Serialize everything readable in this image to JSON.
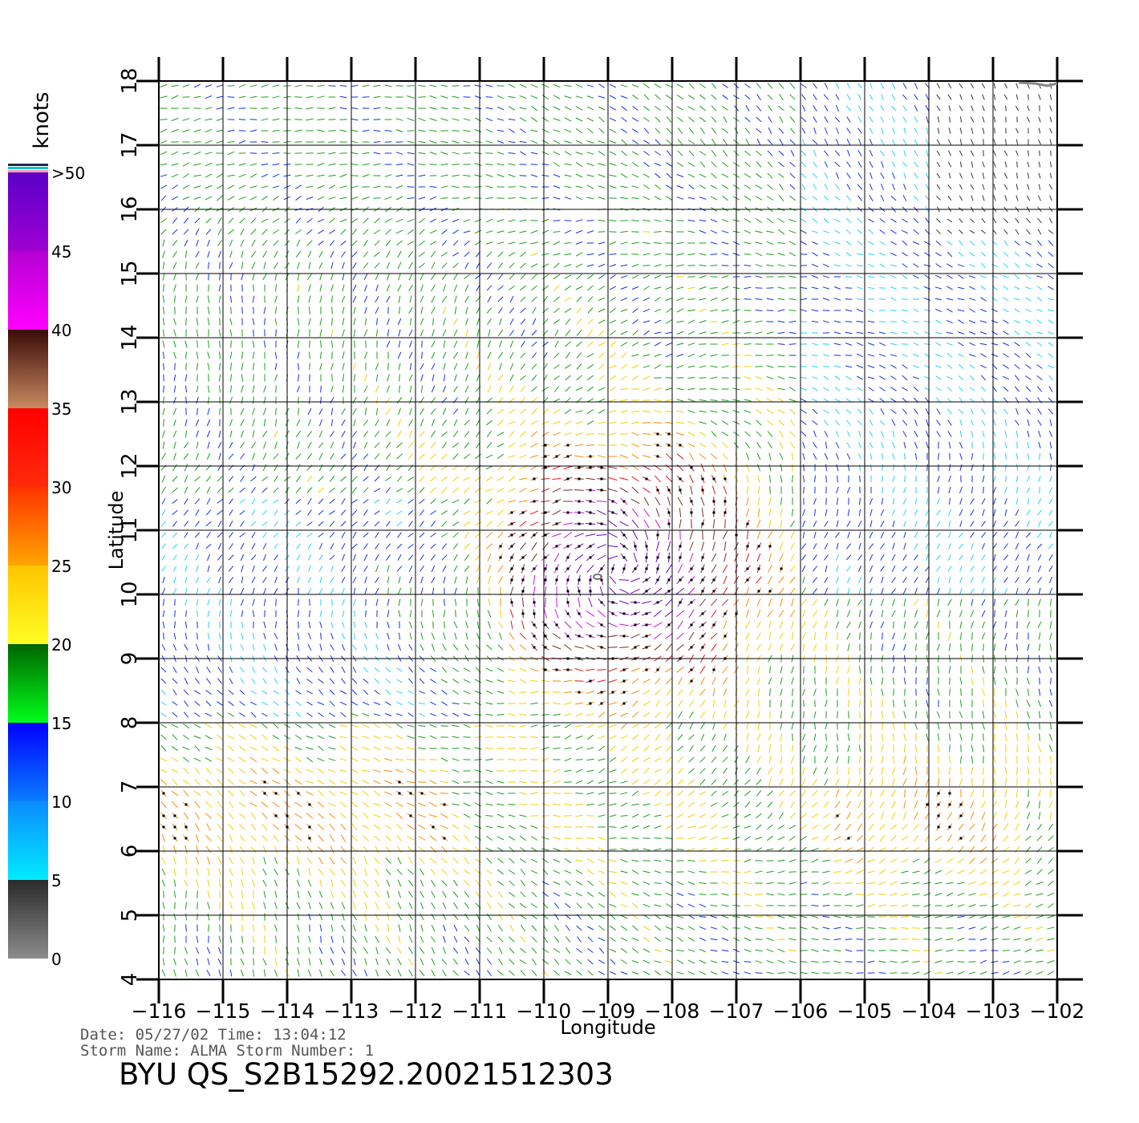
{
  "map": {
    "xlabel": "Longitude",
    "ylabel": "Latitude",
    "lon_ticks": [
      -116,
      -115,
      -114,
      -113,
      -112,
      -111,
      -110,
      -109,
      -108,
      -107,
      -106,
      -105,
      -104,
      -103,
      -102
    ],
    "lat_ticks": [
      4,
      5,
      6,
      7,
      8,
      9,
      10,
      11,
      12,
      13,
      14,
      15,
      16,
      17,
      18
    ],
    "lon_range": [
      -116,
      -101.6
    ],
    "lat_range": [
      4,
      18
    ],
    "grid": true,
    "wind_vector_colors_by_speed": true,
    "rain_flag_marker": "black dot"
  },
  "colorbar": {
    "unit_label": "knots",
    "tick_labels": [
      "0",
      "5",
      "10",
      "15",
      "20",
      "25",
      "30",
      "35",
      "40",
      "45",
      ">50"
    ],
    "bands": [
      {
        "from": 0,
        "to": 5,
        "top_color": "#2a2a2a",
        "bottom_color": "#8c8c8c"
      },
      {
        "from": 5,
        "to": 10,
        "top_color": "#0a8cff",
        "bottom_color": "#00ebff"
      },
      {
        "from": 10,
        "to": 15,
        "top_color": "#0000ff",
        "bottom_color": "#0a7cff"
      },
      {
        "from": 15,
        "to": 20,
        "top_color": "#006400",
        "bottom_color": "#00ff1a"
      },
      {
        "from": 20,
        "to": 25,
        "top_color": "#ffc400",
        "bottom_color": "#ffff22"
      },
      {
        "from": 25,
        "to": 30,
        "top_color": "#ff3300",
        "bottom_color": "#ffa500"
      },
      {
        "from": 30,
        "to": 35,
        "top_color": "#ff0000",
        "bottom_color": "#ff2a0a"
      },
      {
        "from": 35,
        "to": 40,
        "top_color": "#3a0a06",
        "bottom_color": "#c88a60"
      },
      {
        "from": 40,
        "to": 45,
        "top_color": "#b400d2",
        "bottom_color": "#ff00ff"
      },
      {
        "from": 45,
        "to": 50,
        "top_color": "#5a00c8",
        "bottom_color": "#a000d2"
      }
    ],
    "cap_colors": [
      "#ff9ab4",
      "#00c8d2",
      "#1e2a46"
    ]
  },
  "info": {
    "date_line": "Date: 05/27/02   Time: 13:04:12",
    "storm_line": "Storm  Name: ALMA   Storm  Number: 1",
    "product_id": "BYU  QS_S2B15292.20021512303"
  }
}
